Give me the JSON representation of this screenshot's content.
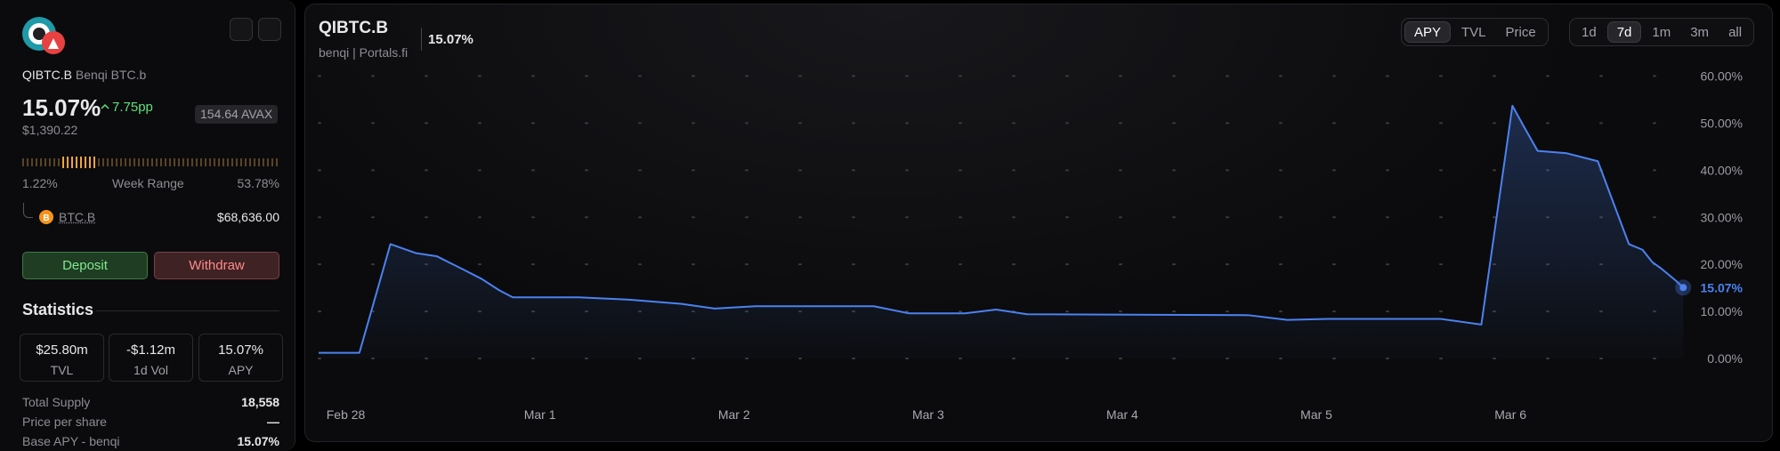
{
  "sidebar": {
    "symbol": "QIBTC.B",
    "name": "Benqi BTC.b",
    "apy": "15.07%",
    "apy_change": "7.75pp",
    "balance": "154.64 AVAX",
    "usd": "$1,390.22",
    "week_low": "1.22%",
    "week_range_label": "Week Range",
    "week_high": "53.78%",
    "token": {
      "symbol": "BTC.B",
      "price": "$68,636.00"
    },
    "deposit": "Deposit",
    "withdraw": "Withdraw",
    "statistics_title": "Statistics",
    "cards": [
      {
        "value": "$25.80m",
        "label": "TVL"
      },
      {
        "value": "-$1.12m",
        "label": "1d Vol"
      },
      {
        "value": "15.07%",
        "label": "APY"
      }
    ],
    "rows": [
      [
        "Total Supply",
        "18,558"
      ],
      [
        "Price per share",
        "—"
      ],
      [
        "Base APY - benqi",
        "15.07%"
      ]
    ]
  },
  "chart_header": {
    "title": "QIBTC.B",
    "subtitle": "benqi | Portals.fi",
    "current": "15.07%",
    "metric_tabs": [
      "APY",
      "TVL",
      "Price"
    ],
    "active_metric": "APY",
    "range_tabs": [
      "1d",
      "7d",
      "1m",
      "3m",
      "all"
    ],
    "active_range": "7d"
  },
  "chart_data": {
    "type": "line",
    "series": [
      {
        "name": "APY",
        "color": "#4b82f0",
        "x": [
          -0.14,
          0.07,
          0.23,
          0.36,
          0.47,
          0.61,
          0.7,
          0.79,
          0.86,
          1.2,
          1.46,
          1.73,
          1.9,
          2.11,
          2.72,
          2.9,
          3.19,
          3.35,
          3.51,
          4.65,
          4.85,
          5.06,
          5.64,
          5.85,
          6.01,
          6.07,
          6.14,
          6.29,
          6.45,
          6.61,
          6.68,
          6.73,
          6.78,
          6.85,
          6.89
        ],
        "values": [
          1.2,
          1.2,
          24.3,
          22.4,
          21.7,
          18.8,
          16.9,
          14.5,
          13.0,
          13.0,
          12.5,
          11.6,
          10.6,
          11.1,
          11.1,
          9.6,
          9.6,
          10.4,
          9.4,
          9.2,
          8.2,
          8.4,
          8.4,
          7.2,
          53.7,
          49.2,
          44.1,
          43.6,
          41.9,
          24.3,
          23.1,
          20.5,
          19.0,
          16.6,
          15.07
        ],
        "value_labels": [
          null,
          null,
          null,
          null,
          null,
          null,
          null,
          null,
          null,
          null,
          null,
          null,
          null,
          null,
          null,
          null,
          null,
          null,
          null,
          null,
          null,
          null,
          null,
          null,
          null,
          null,
          null,
          null,
          null,
          null,
          null,
          null,
          null,
          null,
          "15.07%"
        ]
      }
    ],
    "xlim": [
      -0.14,
      6.93
    ],
    "xticks": [
      {
        "value": 0,
        "label": "Feb 28"
      },
      {
        "value": 1,
        "label": "Mar 1"
      },
      {
        "value": 2,
        "label": "Mar 2"
      },
      {
        "value": 3,
        "label": "Mar 3"
      },
      {
        "value": 4,
        "label": "Mar 4"
      },
      {
        "value": 5,
        "label": "Mar 5"
      },
      {
        "value": 6,
        "label": "Mar 6"
      }
    ],
    "ylim": [
      0,
      60
    ],
    "yticks": [
      {
        "value": 0,
        "label": "0.00%"
      },
      {
        "value": 10,
        "label": "10.00%"
      },
      {
        "value": 20,
        "label": "20.00%"
      },
      {
        "value": 30,
        "label": "30.00%"
      },
      {
        "value": 40,
        "label": "40.00%"
      },
      {
        "value": 50,
        "label": "50.00%"
      },
      {
        "value": 60,
        "label": "60.00%"
      }
    ],
    "grid": true
  }
}
